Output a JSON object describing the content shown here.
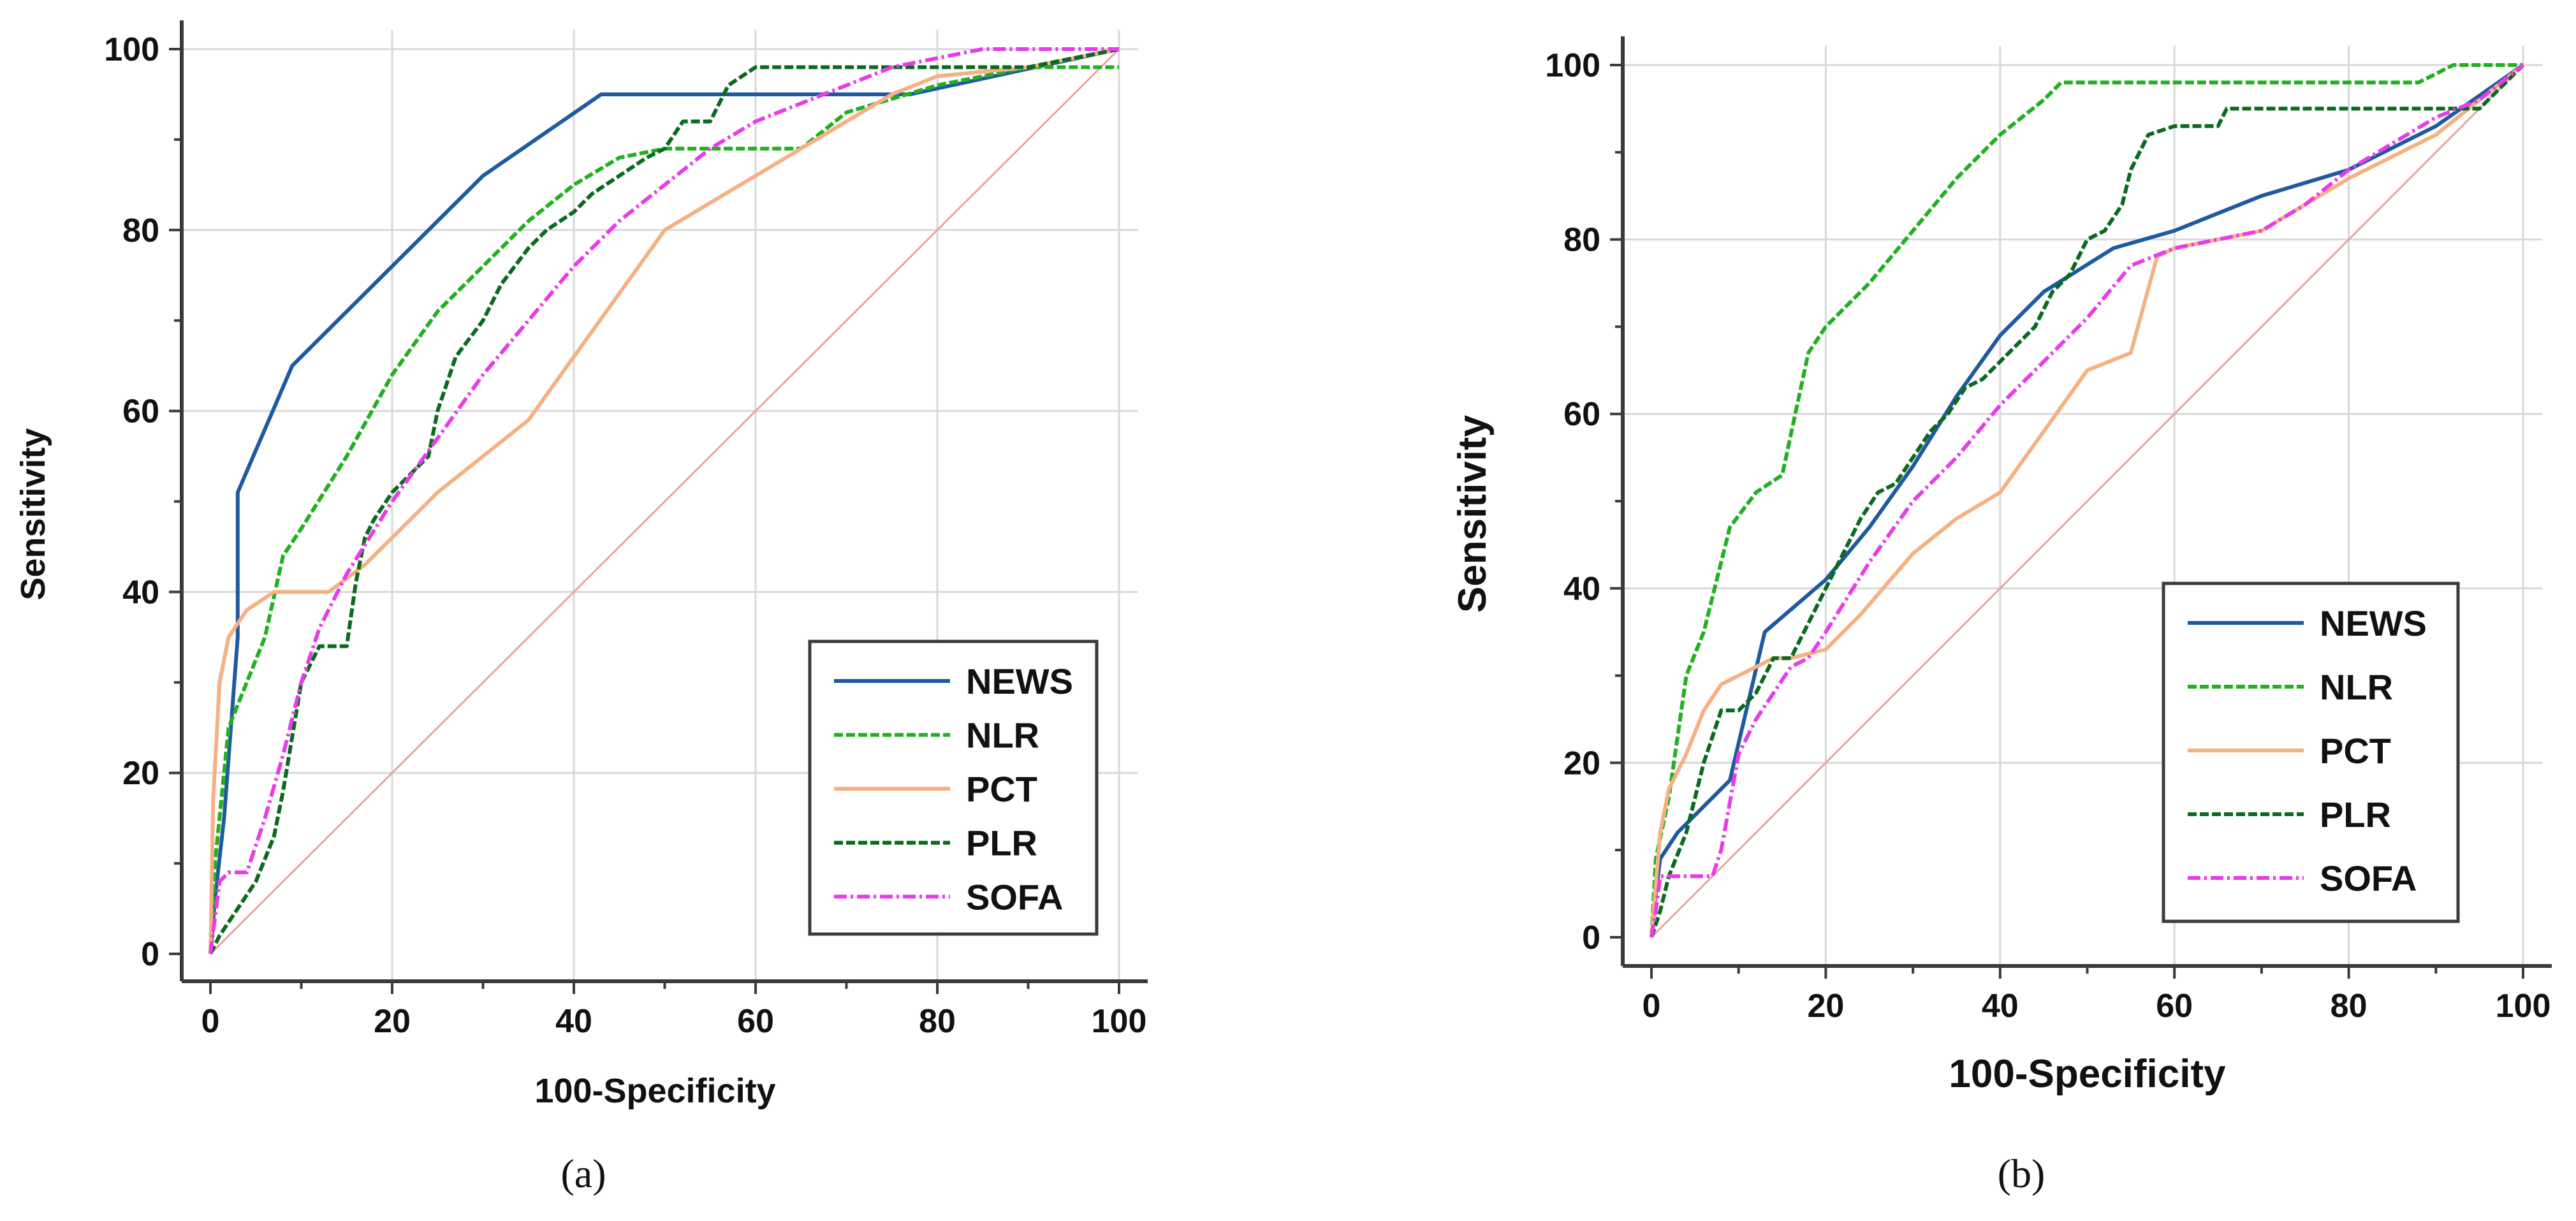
{
  "colors": {
    "NEWS": "#1f5aa0",
    "NLR": "#22b022",
    "PCT": "#f5b183",
    "PLR": "#0a6a1e",
    "SOFA": "#e83ce8",
    "diagonal": "#e9a3a3",
    "grid": "#d9d9d9",
    "axis": "#3a3a3a",
    "text": "#111111"
  },
  "chart_data": [
    {
      "type": "line",
      "panel_label": "(a)",
      "title": "",
      "xlabel": "100-Specificity",
      "ylabel": "Sensitivity",
      "xlim": [
        0,
        100
      ],
      "ylim": [
        0,
        100
      ],
      "xticks": [
        "0",
        "20",
        "40",
        "60",
        "80",
        "100"
      ],
      "yticks": [
        "0",
        "20",
        "40",
        "60",
        "80",
        "100"
      ],
      "grid": true,
      "legend_position": "bottom-right",
      "diagonal_reference": true,
      "series": [
        {
          "name": "NEWS",
          "style": "solid",
          "x": [
            0,
            0.5,
            1.5,
            3,
            3,
            9,
            20,
            30,
            43,
            43,
            60,
            77,
            100
          ],
          "y": [
            0,
            6,
            15,
            35,
            51,
            65,
            76,
            86,
            95,
            95,
            95,
            95,
            100
          ]
        },
        {
          "name": "NLR",
          "style": "dashed",
          "x": [
            0,
            0.5,
            2,
            4,
            6,
            8,
            10,
            15,
            20,
            25,
            30,
            35,
            40,
            45,
            50,
            55,
            60,
            65,
            70,
            80,
            90,
            100
          ],
          "y": [
            0,
            10,
            25,
            30,
            35,
            44,
            47,
            55,
            64,
            71,
            76,
            81,
            85,
            88,
            89,
            89,
            89,
            89,
            93,
            96,
            98,
            98
          ]
        },
        {
          "name": "PCT",
          "style": "solid",
          "x": [
            0,
            0.3,
            1,
            2,
            4,
            7,
            10,
            13,
            17,
            20,
            25,
            30,
            35,
            40,
            45,
            50,
            55,
            60,
            65,
            70,
            75,
            80,
            90,
            100
          ],
          "y": [
            0,
            17,
            30,
            35,
            38,
            40,
            40,
            40,
            43,
            46,
            51,
            55,
            59,
            66,
            73,
            80,
            83,
            86,
            89,
            92,
            95,
            97,
            98,
            100
          ]
        },
        {
          "name": "PLR",
          "style": "dashed",
          "x": [
            0,
            1,
            3,
            5,
            7,
            8,
            9,
            10,
            12,
            13,
            15,
            16,
            17,
            18,
            20,
            22,
            24,
            25,
            27,
            30,
            32,
            35,
            37,
            40,
            42,
            45,
            48,
            50,
            52,
            55,
            57,
            60,
            65,
            70,
            80,
            90,
            100
          ],
          "y": [
            0,
            2,
            5,
            8,
            13,
            18,
            24,
            30,
            34,
            34,
            34,
            41,
            46,
            48,
            51,
            53,
            55,
            60,
            66,
            70,
            74,
            78,
            80,
            82,
            84,
            86,
            88,
            89,
            92,
            92,
            96,
            98,
            98,
            98,
            98,
            98,
            100
          ]
        },
        {
          "name": "SOFA",
          "style": "dashdot",
          "x": [
            0,
            1,
            2,
            4,
            6,
            8,
            10,
            12,
            15,
            20,
            25,
            30,
            35,
            40,
            45,
            50,
            55,
            60,
            65,
            70,
            75,
            80,
            85,
            90,
            100
          ],
          "y": [
            0,
            8,
            9,
            9,
            15,
            22,
            30,
            36,
            42,
            50,
            57,
            64,
            70,
            76,
            81,
            85,
            89,
            92,
            94,
            96,
            98,
            99,
            100,
            100,
            100
          ]
        }
      ]
    },
    {
      "type": "line",
      "panel_label": "(b)",
      "title": "",
      "xlabel": "100-Specificity",
      "ylabel": "Sensitivity",
      "xlim": [
        0,
        100
      ],
      "ylim": [
        0,
        100
      ],
      "xticks": [
        "0",
        "20",
        "40",
        "60",
        "80",
        "100"
      ],
      "yticks": [
        "0",
        "20",
        "40",
        "60",
        "80",
        "100"
      ],
      "grid": true,
      "legend_position": "bottom-right",
      "diagonal_reference": true,
      "series": [
        {
          "name": "NEWS",
          "style": "solid",
          "x": [
            0,
            0.5,
            1,
            3,
            5,
            9,
            13,
            20,
            25,
            30,
            35,
            40,
            45,
            53,
            60,
            70,
            80,
            90,
            100
          ],
          "y": [
            0,
            5,
            9,
            12,
            14,
            18,
            35,
            41,
            47,
            54,
            62,
            69,
            74,
            79,
            81,
            85,
            88,
            93,
            100
          ]
        },
        {
          "name": "NLR",
          "style": "dashed",
          "x": [
            0,
            0.5,
            2,
            4,
            6,
            9,
            12,
            15,
            18,
            20,
            25,
            30,
            35,
            40,
            45,
            47,
            50,
            60,
            70,
            80,
            88,
            92,
            100
          ],
          "y": [
            0,
            9,
            16,
            30,
            35,
            47,
            51,
            53,
            67,
            70,
            75,
            81,
            87,
            92,
            96,
            98,
            98,
            98,
            98,
            98,
            98,
            100,
            100
          ]
        },
        {
          "name": "PCT",
          "style": "solid",
          "x": [
            0,
            1,
            2,
            4,
            6,
            8,
            10,
            12,
            14,
            16,
            20,
            24,
            30,
            35,
            40,
            45,
            50,
            55,
            58,
            60,
            70,
            80,
            90,
            100
          ],
          "y": [
            0,
            12,
            17,
            21,
            26,
            29,
            30,
            31,
            32,
            32,
            33,
            37,
            44,
            48,
            51,
            58,
            65,
            67,
            78,
            79,
            81,
            87,
            92,
            100
          ]
        },
        {
          "name": "PLR",
          "style": "dashed",
          "x": [
            0,
            1,
            2,
            4,
            6,
            8,
            10,
            12,
            14,
            16,
            18,
            20,
            22,
            24,
            26,
            28,
            30,
            32,
            34,
            36,
            38,
            40,
            42,
            44,
            46,
            48,
            50,
            52,
            54,
            55,
            56,
            57,
            60,
            65,
            66,
            70,
            80,
            90,
            95,
            98,
            100
          ],
          "y": [
            0,
            3,
            7,
            12,
            20,
            26,
            26,
            28,
            32,
            32,
            36,
            40,
            44,
            48,
            51,
            52,
            55,
            58,
            60,
            63,
            64,
            66,
            68,
            70,
            74,
            76,
            80,
            81,
            84,
            88,
            90,
            92,
            93,
            93,
            95,
            95,
            95,
            95,
            95,
            98,
            100
          ]
        },
        {
          "name": "SOFA",
          "style": "dashdot",
          "x": [
            0,
            0.5,
            1,
            3,
            5,
            7,
            8,
            10,
            12,
            14,
            16,
            18,
            20,
            25,
            30,
            35,
            40,
            45,
            50,
            55,
            60,
            65,
            70,
            75,
            80,
            85,
            90,
            95,
            100
          ],
          "y": [
            0,
            3,
            7,
            7,
            7,
            7,
            10,
            21,
            25,
            28,
            31,
            32,
            35,
            43,
            50,
            55,
            61,
            66,
            71,
            77,
            79,
            80,
            81,
            84,
            88,
            91,
            94,
            96,
            100
          ]
        }
      ]
    }
  ]
}
